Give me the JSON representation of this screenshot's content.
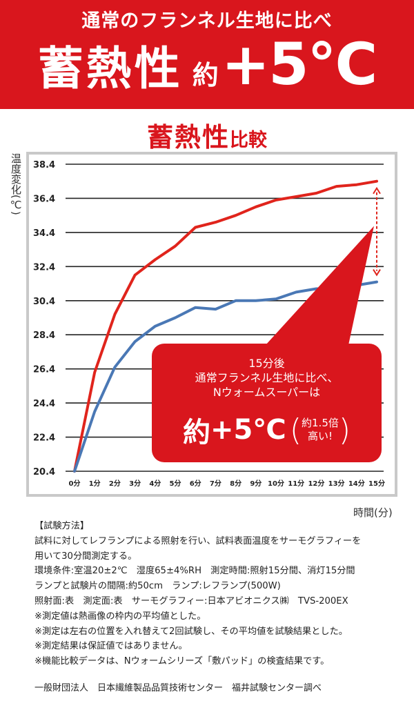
{
  "banner": {
    "subtitle": "通常のフランネル生地に比べ",
    "main_word": "蓄熱性",
    "main_approx": "約",
    "main_value": "+5℃"
  },
  "chart_title": {
    "big": "蓄熱性",
    "small": "比較"
  },
  "callout": {
    "line1": "15分後",
    "line2": "通常フランネル生地に比べ、",
    "line3": "Nウォームスーパーは",
    "big_approx": "約",
    "big_value": "+5℃",
    "paren_open": "(",
    "paren_close": ")",
    "note_line1": "約1.5倍",
    "note_line2": "高い!"
  },
  "method": {
    "heading": "【試験方法】",
    "lines": [
      "試料に対してレフランプによる照射を行い、試料表面温度をサーモグラフィーを",
      "用いて30分間測定する。",
      "環境条件:室温20±2℃　湿度65±4%RH　測定時間:照射15分間、消灯15分間",
      "ランプと試験片の間隔:約50cm　ランプ:レフランプ(500W)",
      "照射面:表　測定面:表　サーモグラフィー:日本アビオニクス㈱　TVS-200EX",
      "※測定値は熱画像の枠内の平均値とした。",
      "※測定は左右の位置を入れ替えて2回試験し、その平均値を試験結果とした。",
      "※測定結果は保証値ではありません。",
      "※機能比較データは、Nウォームシリーズ「敷パッド」の検査結果です。"
    ],
    "credit": "一般財団法人　日本繊維製品品質技術センター　福井試験センター調べ"
  },
  "chart_data": {
    "type": "line",
    "title": "蓄熱性比較",
    "ylabel": "温度変化(℃)",
    "yunit": "℃",
    "xlabel": "時間(分)",
    "ylim": [
      20.4,
      38.4
    ],
    "yticks": [
      "38.4",
      "36.4",
      "34.4",
      "32.4",
      "30.4",
      "28.4",
      "26.4",
      "24.4",
      "22.4",
      "20.4"
    ],
    "ytick_values": [
      38.4,
      36.4,
      34.4,
      32.4,
      30.4,
      28.4,
      26.4,
      24.4,
      22.4,
      20.4
    ],
    "categories": [
      "0分",
      "1分",
      "2分",
      "3分",
      "4分",
      "5分",
      "6分",
      "7分",
      "8分",
      "9分",
      "10分",
      "11分",
      "12分",
      "13分",
      "14分",
      "15分"
    ],
    "grid": true,
    "series": [
      {
        "color": "#e0241c",
        "values": [
          20.4,
          26.2,
          29.6,
          31.9,
          32.8,
          33.6,
          34.7,
          35.0,
          35.4,
          35.9,
          36.3,
          36.5,
          36.7,
          37.1,
          37.2,
          37.4
        ]
      },
      {
        "color": "#4a78b5",
        "values": [
          20.4,
          23.9,
          26.5,
          28.0,
          28.9,
          29.4,
          30.0,
          29.9,
          30.4,
          30.4,
          30.5,
          30.9,
          31.1,
          31.1,
          31.3,
          31.5
        ]
      }
    ],
    "annotation": {
      "color": "#e0241c",
      "x_index": 15,
      "y_from": 31.5,
      "y_to": 37.4
    }
  },
  "colors": {
    "accent": "#d9161d",
    "grid": "#222222"
  }
}
